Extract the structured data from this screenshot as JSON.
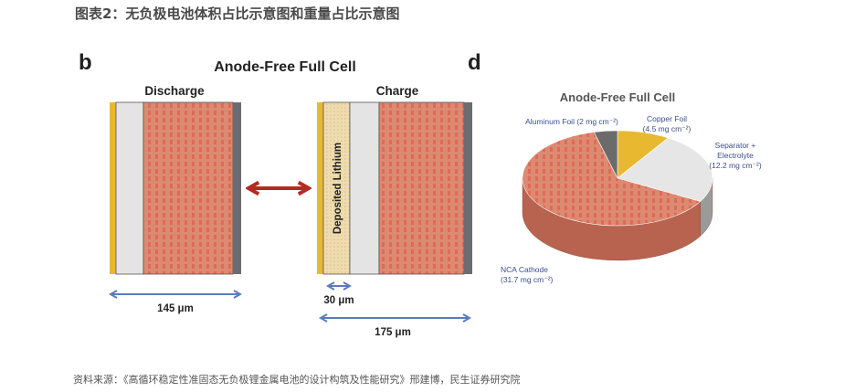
{
  "header": {
    "title": "图表2：无负极电池体积占比示意图和重量占比示意图"
  },
  "panel_b": {
    "letter": "b",
    "title": "Anode-Free Full Cell",
    "discharge_label": "Discharge",
    "charge_label": "Charge",
    "deposited_label": "Deposited Lithium",
    "discharge_thickness": "145 μm",
    "lithium_thickness": "30 μm",
    "charge_thickness": "175 μm"
  },
  "panel_d": {
    "letter": "d",
    "title": "Anode-Free Full Cell"
  },
  "chart_data": {
    "type": "pie",
    "title": "Anode-Free Full Cell",
    "unit": "mg cm⁻²",
    "slices": [
      {
        "name": "Copper Foil",
        "label1": "Copper Foil",
        "label2": "(4.5 mg cm⁻²)",
        "value": 4.5,
        "color": "#e8b830"
      },
      {
        "name": "Separator + Electrolyte",
        "label1": "Separator +",
        "label2": "Electrolyte",
        "label3": "(12.2 mg cm⁻²)",
        "value": 12.2,
        "color": "#e6e6e6"
      },
      {
        "name": "NCA Cathode",
        "label1": "NCA Cathode",
        "label2": "(31.7 mg cm⁻²)",
        "value": 31.7,
        "color": "#d8826c"
      },
      {
        "name": "Aluminum Foil",
        "label1": "Aluminum Foil (2 mg cm⁻²)",
        "value": 2,
        "color": "#6b6b6b"
      }
    ]
  },
  "colors": {
    "copper": "#e8b830",
    "separator": "#e4e4e4",
    "cathode": "#dc8a72",
    "aluminum": "#6b6b73",
    "lithium": "#efdcae",
    "arrow_red": "#b52a22",
    "arrow_blue": "#5b7bc0"
  },
  "footer": {
    "source": "资料来源：《高循环稳定性准固态无负极锂金属电池的设计构筑及性能研究》邢建博，民生证券研究院"
  }
}
